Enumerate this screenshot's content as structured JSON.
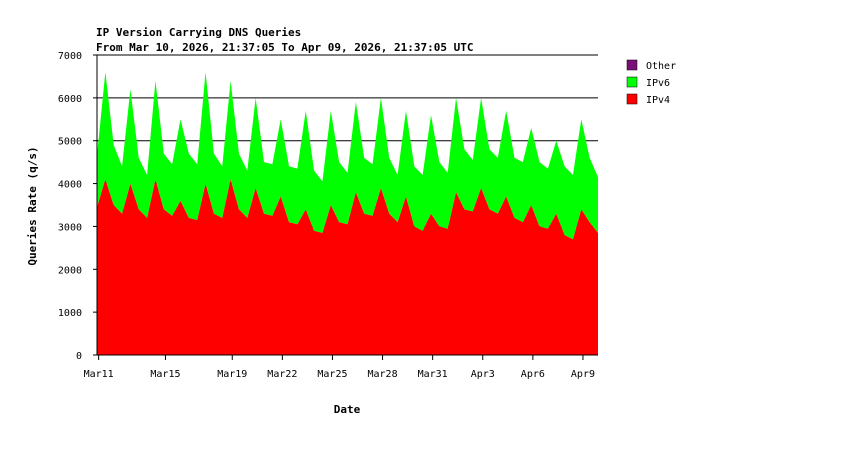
{
  "chart_data": {
    "type": "area",
    "stacked": true,
    "title": "IP Version Carrying DNS Queries",
    "subtitle": "From Mar 10, 2026, 21:37:05 To Apr 09, 2026, 21:37:05 UTC",
    "xlabel": "Date",
    "ylabel": "Queries Rate (q/s)",
    "ylim": [
      0,
      7000
    ],
    "yticks": [
      0,
      1000,
      2000,
      3000,
      4000,
      5000,
      6000,
      7000
    ],
    "xlim": [
      "2026-03-10T21:37:05",
      "2026-04-09T21:37:05"
    ],
    "xticks": [
      {
        "date": "2026-03-11",
        "label": "Mar11"
      },
      {
        "date": "2026-03-15",
        "label": "Mar15"
      },
      {
        "date": "2026-03-19",
        "label": "Mar19"
      },
      {
        "date": "2026-03-22",
        "label": "Mar22"
      },
      {
        "date": "2026-03-25",
        "label": "Mar25"
      },
      {
        "date": "2026-03-28",
        "label": "Mar28"
      },
      {
        "date": "2026-03-31",
        "label": "Mar31"
      },
      {
        "date": "2026-04-03",
        "label": "Apr3"
      },
      {
        "date": "2026-04-06",
        "label": "Apr6"
      },
      {
        "date": "2026-04-09",
        "label": "Apr9"
      }
    ],
    "grid": "horizontal",
    "legend_position": "right",
    "series": [
      {
        "name": "Other",
        "color": "#7a0f7a",
        "values": [
          0,
          0,
          0,
          0,
          0,
          0,
          0,
          0,
          0,
          0,
          0,
          0,
          0,
          0,
          0,
          0,
          0,
          0,
          0,
          0,
          0,
          0,
          0,
          0,
          0,
          0,
          0,
          0,
          0,
          0,
          0,
          0,
          0,
          0,
          0,
          0,
          0,
          0,
          0,
          0,
          0,
          0,
          0,
          0,
          0,
          0,
          0,
          0,
          0,
          0,
          0,
          0,
          0,
          0,
          0,
          0,
          0,
          0,
          0,
          0,
          0
        ]
      },
      {
        "name": "IPv6",
        "color": "#00ff00",
        "values": [
          1200,
          2500,
          1400,
          1100,
          2200,
          1200,
          1000,
          2300,
          1300,
          1200,
          1900,
          1500,
          1300,
          2600,
          1400,
          1200,
          2300,
          1300,
          1100,
          2100,
          1200,
          1200,
          1800,
          1300,
          1300,
          2300,
          1400,
          1200,
          2200,
          1400,
          1200,
          2100,
          1300,
          1200,
          2100,
          1300,
          1100,
          2000,
          1400,
          1300,
          2300,
          1500,
          1300,
          2200,
          1400,
          1200,
          2100,
          1400,
          1300,
          2000,
          1400,
          1400,
          1800,
          1500,
          1400,
          1700,
          1600,
          1500,
          2100,
          1500,
          1300
        ]
      },
      {
        "name": "IPv4",
        "color": "#ff0000",
        "values": [
          3450,
          4100,
          3500,
          3300,
          4000,
          3400,
          3200,
          4100,
          3400,
          3250,
          3600,
          3200,
          3150,
          4000,
          3300,
          3200,
          4100,
          3400,
          3200,
          3900,
          3300,
          3250,
          3700,
          3100,
          3050,
          3400,
          2900,
          2850,
          3500,
          3100,
          3050,
          3800,
          3300,
          3250,
          3900,
          3300,
          3100,
          3700,
          3000,
          2900,
          3300,
          3000,
          2950,
          3800,
          3400,
          3350,
          3900,
          3400,
          3300,
          3700,
          3200,
          3100,
          3500,
          3000,
          2950,
          3300,
          2800,
          2700,
          3400,
          3100,
          2850
        ]
      }
    ]
  }
}
